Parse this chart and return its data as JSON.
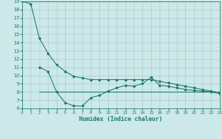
{
  "xlabel": "Humidex (Indice chaleur)",
  "bg_color": "#cce8e8",
  "grid_color": "#aacccc",
  "line_color": "#1a7a6e",
  "xlim": [
    0,
    23
  ],
  "ylim": [
    6,
    19
  ],
  "xticks": [
    0,
    1,
    2,
    3,
    4,
    5,
    6,
    7,
    8,
    9,
    10,
    11,
    12,
    13,
    14,
    15,
    16,
    17,
    18,
    19,
    20,
    21,
    22,
    23
  ],
  "yticks": [
    6,
    7,
    8,
    9,
    10,
    11,
    12,
    13,
    14,
    15,
    16,
    17,
    18,
    19
  ],
  "curve1_x": [
    0,
    1,
    2,
    3,
    4,
    5,
    6,
    7,
    8,
    9,
    10,
    11,
    12,
    13,
    14,
    15,
    16,
    17,
    18,
    19,
    20,
    21,
    22,
    23
  ],
  "curve1_y": [
    19,
    18.7,
    14.5,
    12.7,
    11.3,
    10.5,
    9.9,
    9.7,
    9.5,
    9.5,
    9.5,
    9.5,
    9.5,
    9.5,
    9.5,
    9.5,
    9.3,
    9.1,
    8.9,
    8.7,
    8.5,
    8.3,
    8.1,
    7.9
  ],
  "curve2_x": [
    2,
    3,
    4,
    5,
    6,
    7,
    8,
    9,
    10,
    11,
    12,
    13,
    14,
    15,
    16,
    17,
    18,
    19,
    20,
    21,
    22,
    23
  ],
  "curve2_y": [
    11.0,
    10.5,
    8.0,
    6.7,
    6.3,
    6.3,
    7.3,
    7.6,
    8.1,
    8.5,
    8.8,
    8.7,
    9.0,
    9.8,
    8.8,
    8.7,
    8.5,
    8.3,
    8.2,
    8.1,
    8.0,
    7.8
  ],
  "curve3_x": [
    2,
    3,
    4,
    5,
    6,
    7,
    8,
    9,
    10,
    11,
    12,
    13,
    14,
    15,
    16,
    17,
    18,
    19,
    20,
    21,
    22,
    23
  ],
  "curve3_y": [
    8.0,
    8.0,
    8.0,
    8.0,
    8.0,
    8.0,
    8.0,
    8.0,
    8.0,
    8.0,
    8.0,
    8.0,
    8.0,
    8.0,
    8.0,
    8.0,
    8.0,
    8.0,
    8.0,
    8.0,
    8.0,
    8.0
  ]
}
